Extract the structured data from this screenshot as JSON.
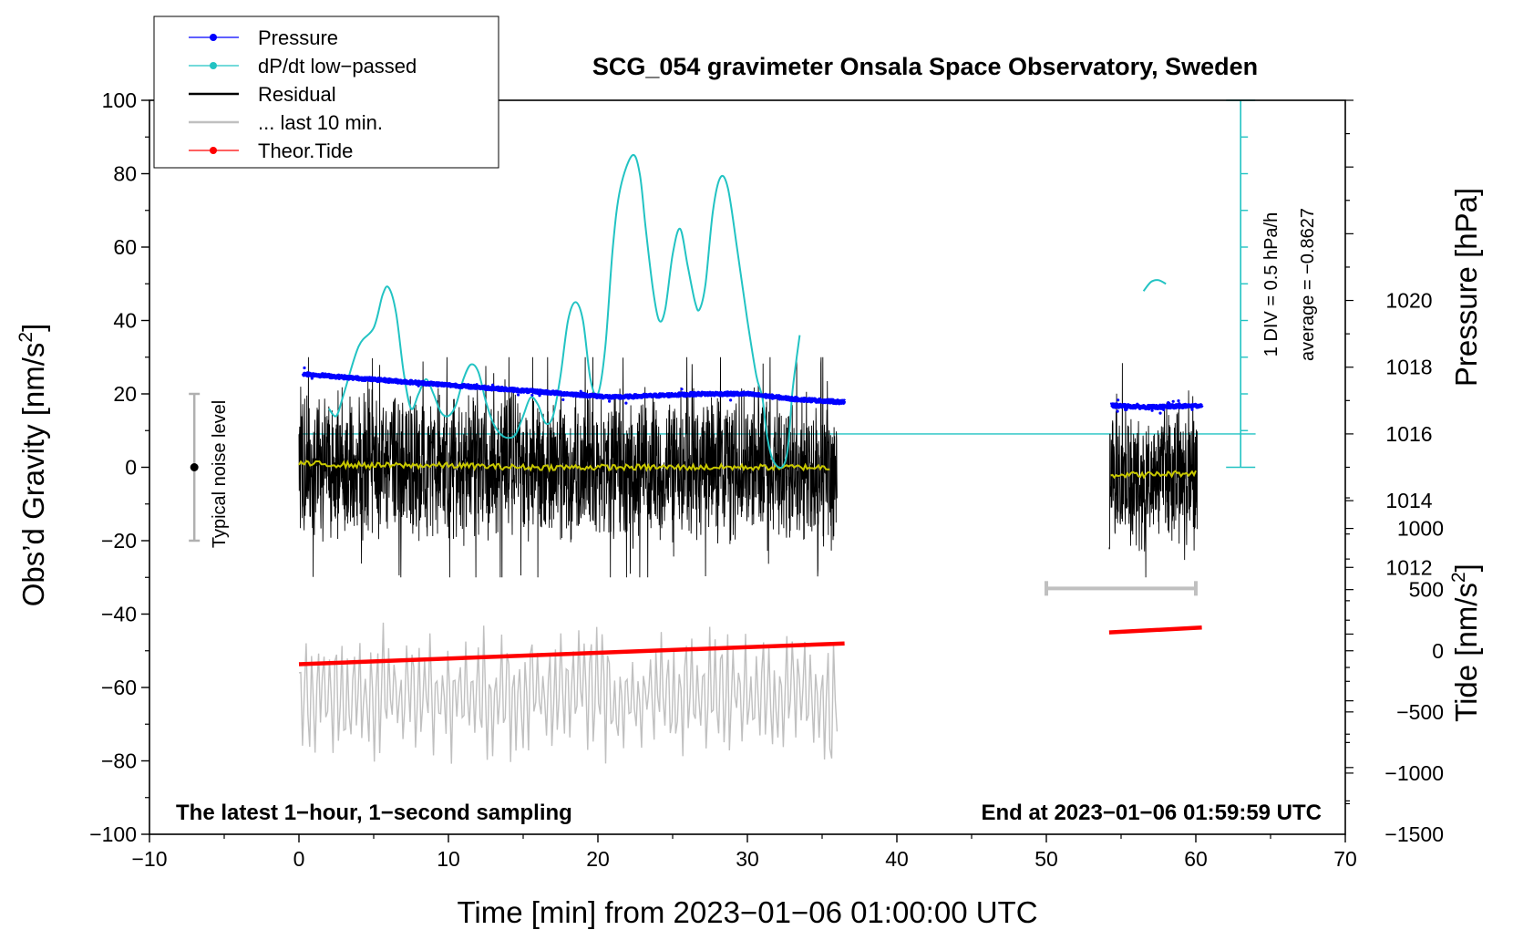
{
  "chart_data": {
    "type": "line",
    "title": "SCG_054 gravimeter Onsala Space Observatory, Sweden",
    "xlabel": "Time [min] from 2023−01−06 01:00:00 UTC",
    "ylabel_left_main": "Obs’d Gravity [nm/s",
    "ylabel_left_sup": "2",
    "ylabel_left_end": "]",
    "ylabel_right_pressure": "Pressure [hPa]",
    "ylabel_right_tide_main": "Tide [nm/s",
    "ylabel_right_tide_sup": "2",
    "ylabel_right_tide_end": "]",
    "xlim": [
      -10,
      70
    ],
    "ylim": [
      -100,
      100
    ],
    "pressure_lim": [
      1004,
      1026
    ],
    "tide_lim": [
      -1500,
      4500
    ],
    "x_ticks": [
      {
        "v": -10,
        "l": "−10"
      },
      {
        "v": 0,
        "l": "0"
      },
      {
        "v": 10,
        "l": "10"
      },
      {
        "v": 20,
        "l": "20"
      },
      {
        "v": 30,
        "l": "30"
      },
      {
        "v": 40,
        "l": "40"
      },
      {
        "v": 50,
        "l": "50"
      },
      {
        "v": 60,
        "l": "60"
      },
      {
        "v": 70,
        "l": "70"
      }
    ],
    "y_ticks": [
      {
        "v": 100,
        "l": "100"
      },
      {
        "v": 80,
        "l": "80"
      },
      {
        "v": 60,
        "l": "60"
      },
      {
        "v": 40,
        "l": "40"
      },
      {
        "v": 20,
        "l": "20"
      },
      {
        "v": 0,
        "l": "0"
      },
      {
        "v": -20,
        "l": "−20"
      },
      {
        "v": -40,
        "l": "−40"
      },
      {
        "v": -60,
        "l": "−60"
      },
      {
        "v": -80,
        "l": "−80"
      },
      {
        "v": -100,
        "l": "−100"
      }
    ],
    "pressure_ticks": [
      {
        "v": 1012,
        "l": "1012"
      },
      {
        "v": 1014,
        "l": "1014"
      },
      {
        "v": 1016,
        "l": "1016"
      },
      {
        "v": 1018,
        "l": "1018"
      },
      {
        "v": 1020,
        "l": "1020"
      }
    ],
    "tide_ticks": [
      {
        "v": -1500,
        "l": "−1500"
      },
      {
        "v": -1000,
        "l": "−1000"
      },
      {
        "v": -500,
        "l": "−500"
      },
      {
        "v": 0,
        "l": "0"
      },
      {
        "v": 500,
        "l": "500"
      },
      {
        "v": 1000,
        "l": "1000"
      }
    ],
    "legend": [
      {
        "label": "Pressure",
        "color": "#0000ff",
        "marker": true
      },
      {
        "label": "dP/dt low−passed",
        "color": "#22c3c3",
        "marker": true
      },
      {
        "label": "Residual",
        "color": "#000000",
        "marker": false
      },
      {
        "label": "... last 10 min.",
        "color": "#c0c0c0",
        "marker": false
      },
      {
        "label": "Theor.Tide",
        "color": "#ff0000",
        "marker": true
      }
    ],
    "series": [
      {
        "name": "Pressure",
        "axis": "pressure",
        "color": "#0000ff",
        "segments": [
          [
            [
              0.3,
              1017.8
            ],
            [
              3,
              1017.7
            ],
            [
              6,
              1017.6
            ],
            [
              9,
              1017.5
            ],
            [
              12,
              1017.4
            ],
            [
              15,
              1017.3
            ],
            [
              18,
              1017.2
            ],
            [
              21,
              1017.1
            ],
            [
              24,
              1017.15
            ],
            [
              27,
              1017.2
            ],
            [
              30,
              1017.2
            ],
            [
              33,
              1017.05
            ],
            [
              36.5,
              1016.95
            ]
          ],
          [
            [
              54.3,
              1016.85
            ],
            [
              57,
              1016.8
            ],
            [
              60.4,
              1016.85
            ]
          ]
        ]
      },
      {
        "name": "dP/dt low-passed",
        "axis": "left",
        "color": "#22c3c3",
        "segments": [
          [
            [
              2,
              16
            ],
            [
              2.5,
              14
            ],
            [
              3,
              20
            ],
            [
              4,
              33
            ],
            [
              5,
              38
            ],
            [
              5.6,
              47
            ],
            [
              6,
              49
            ],
            [
              6.5,
              42
            ],
            [
              7,
              26
            ],
            [
              7.5,
              16
            ],
            [
              8,
              20
            ],
            [
              8.5,
              24
            ],
            [
              9,
              20
            ],
            [
              9.5,
              15
            ],
            [
              10,
              14
            ],
            [
              10.5,
              17
            ],
            [
              11,
              24
            ],
            [
              11.5,
              28
            ],
            [
              12,
              26
            ],
            [
              12.5,
              18
            ],
            [
              13,
              12
            ],
            [
              13.5,
              9
            ],
            [
              14,
              8
            ],
            [
              14.5,
              9
            ],
            [
              15,
              14
            ],
            [
              15.5,
              19
            ],
            [
              16,
              17
            ],
            [
              16.5,
              12
            ],
            [
              17,
              14
            ],
            [
              17.5,
              25
            ],
            [
              18,
              40
            ],
            [
              18.5,
              45
            ],
            [
              19,
              40
            ],
            [
              19.5,
              24
            ],
            [
              20,
              20
            ],
            [
              20.5,
              33
            ],
            [
              21,
              60
            ],
            [
              21.5,
              76
            ],
            [
              22.3,
              85
            ],
            [
              22.8,
              80
            ],
            [
              23.2,
              65
            ],
            [
              23.7,
              48
            ],
            [
              24.1,
              40
            ],
            [
              24.5,
              43
            ],
            [
              25,
              58
            ],
            [
              25.5,
              65
            ],
            [
              26,
              55
            ],
            [
              26.5,
              45
            ],
            [
              26.8,
              43
            ],
            [
              27.2,
              50
            ],
            [
              27.7,
              70
            ],
            [
              28.2,
              79
            ],
            [
              28.7,
              76
            ],
            [
              29.3,
              60
            ],
            [
              30,
              40
            ],
            [
              30.6,
              25
            ],
            [
              31,
              19
            ],
            [
              31.3,
              9
            ],
            [
              31.7,
              2
            ],
            [
              32.3,
              0
            ],
            [
              32.7,
              5
            ],
            [
              33,
              20
            ],
            [
              33.3,
              30
            ],
            [
              33.5,
              36
            ]
          ],
          [
            [
              56.5,
              48
            ],
            [
              57,
              50.5
            ],
            [
              57.5,
              51
            ],
            [
              58,
              50
            ]
          ]
        ]
      },
      {
        "name": "Residual",
        "axis": "left",
        "color": "#000000",
        "segments": [
          [
            [
              0,
              0
            ],
            [
              36,
              0
            ]
          ],
          [
            [
              54.2,
              -2
            ],
            [
              60.1,
              -2
            ]
          ]
        ]
      },
      {
        "name": "Residual running mean",
        "axis": "left",
        "color": "#c8c800",
        "segments": [
          [
            [
              0,
              1
            ],
            [
              5,
              0.5
            ],
            [
              10,
              0.5
            ],
            [
              15,
              0
            ],
            [
              20,
              0
            ],
            [
              25,
              0
            ],
            [
              30,
              0
            ],
            [
              35.5,
              0
            ]
          ],
          [
            [
              54.3,
              -2
            ],
            [
              57,
              -2
            ],
            [
              60,
              -1.5
            ]
          ]
        ]
      },
      {
        "name": "... last 10 min.",
        "axis": "left",
        "color": "#c0c0c0",
        "segments": [
          [
            [
              0,
              -56
            ],
            [
              36,
              -72
            ]
          ]
        ]
      },
      {
        "name": "Theor.Tide",
        "axis": "tide",
        "color": "#ff0000",
        "segments": [
          [
            [
              0,
              -110
            ],
            [
              36.5,
              60
            ]
          ],
          [
            [
              54.2,
              150
            ],
            [
              60.4,
              190
            ]
          ]
        ]
      }
    ],
    "noise_bar": {
      "x": -7,
      "y_low": -20,
      "y_high": 20,
      "label": "Typical noise level"
    },
    "last10_range": {
      "x_start": 50,
      "x_end": 60,
      "y": -33
    },
    "pressure_ref_line": {
      "y": 1016,
      "x_start": 0,
      "x_end": 64
    },
    "scale_bar": {
      "x": 63,
      "div_label": "1 DIV = 0.5 hPa/h",
      "avg_label": "average = −0.8627"
    },
    "annotations": {
      "bottom_left": "The latest 1−hour, 1−second sampling",
      "bottom_right": "End at 2023−01−06 01:59:59 UTC"
    }
  }
}
